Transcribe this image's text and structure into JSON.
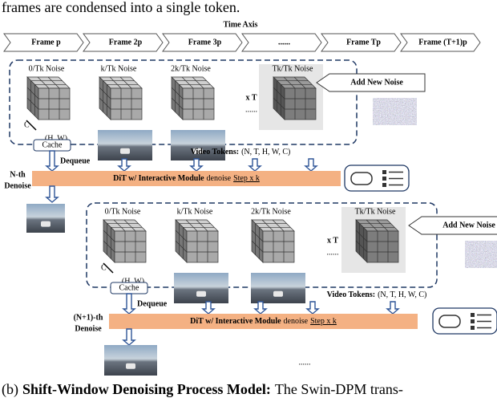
{
  "header": {
    "text": "frames are condensed into a single token."
  },
  "time_axis": {
    "title": "Time Axis",
    "frames": [
      "Frame p",
      "Frame 2p",
      "Frame 3p",
      "......",
      "Frame Tp",
      "Frame (T+1)p"
    ]
  },
  "blocks": [
    {
      "noise_labels": [
        "0/Tk Noise",
        "k/Tk Noise",
        "2k/Tk Noise",
        "Tk/Tk Noise"
      ],
      "repeat": "x T",
      "ellipsis": "......",
      "add_noise": "Add New Noise",
      "channel": "C",
      "size": "(H, W)",
      "cache": "Cache",
      "dequeue": "Dequeue",
      "tokens_label": "Video Tokens:",
      "tokens_shape": "(N, T, H, W, C)",
      "step_name": "N-th",
      "step_word": "Denoise",
      "dit": {
        "module": "DiT w/ Interactive Module",
        "verb": "denoise",
        "step": "Step x k"
      }
    },
    {
      "noise_labels": [
        "0/Tk Noise",
        "k/Tk Noise",
        "2k/Tk Noise",
        "Tk/Tk Noise"
      ],
      "repeat": "x T",
      "ellipsis": "......",
      "add_noise": "Add New Noise",
      "channel": "C",
      "size": "(H, W)",
      "cache": "Cache",
      "dequeue": "Dequeue",
      "tokens_label": "Video Tokens:",
      "tokens_shape": "(N, T, H, W, C)",
      "step_name": "(N+1)-th",
      "step_word": "Denoise",
      "dit": {
        "module": "DiT w/ Interactive Module",
        "verb": "denoise",
        "step": "Step x k"
      }
    }
  ],
  "trailing": "......",
  "caption": {
    "label": "(b)",
    "title": "Shift-Window Denoising Process Model:",
    "text": "The Swin-DPM trans-"
  }
}
